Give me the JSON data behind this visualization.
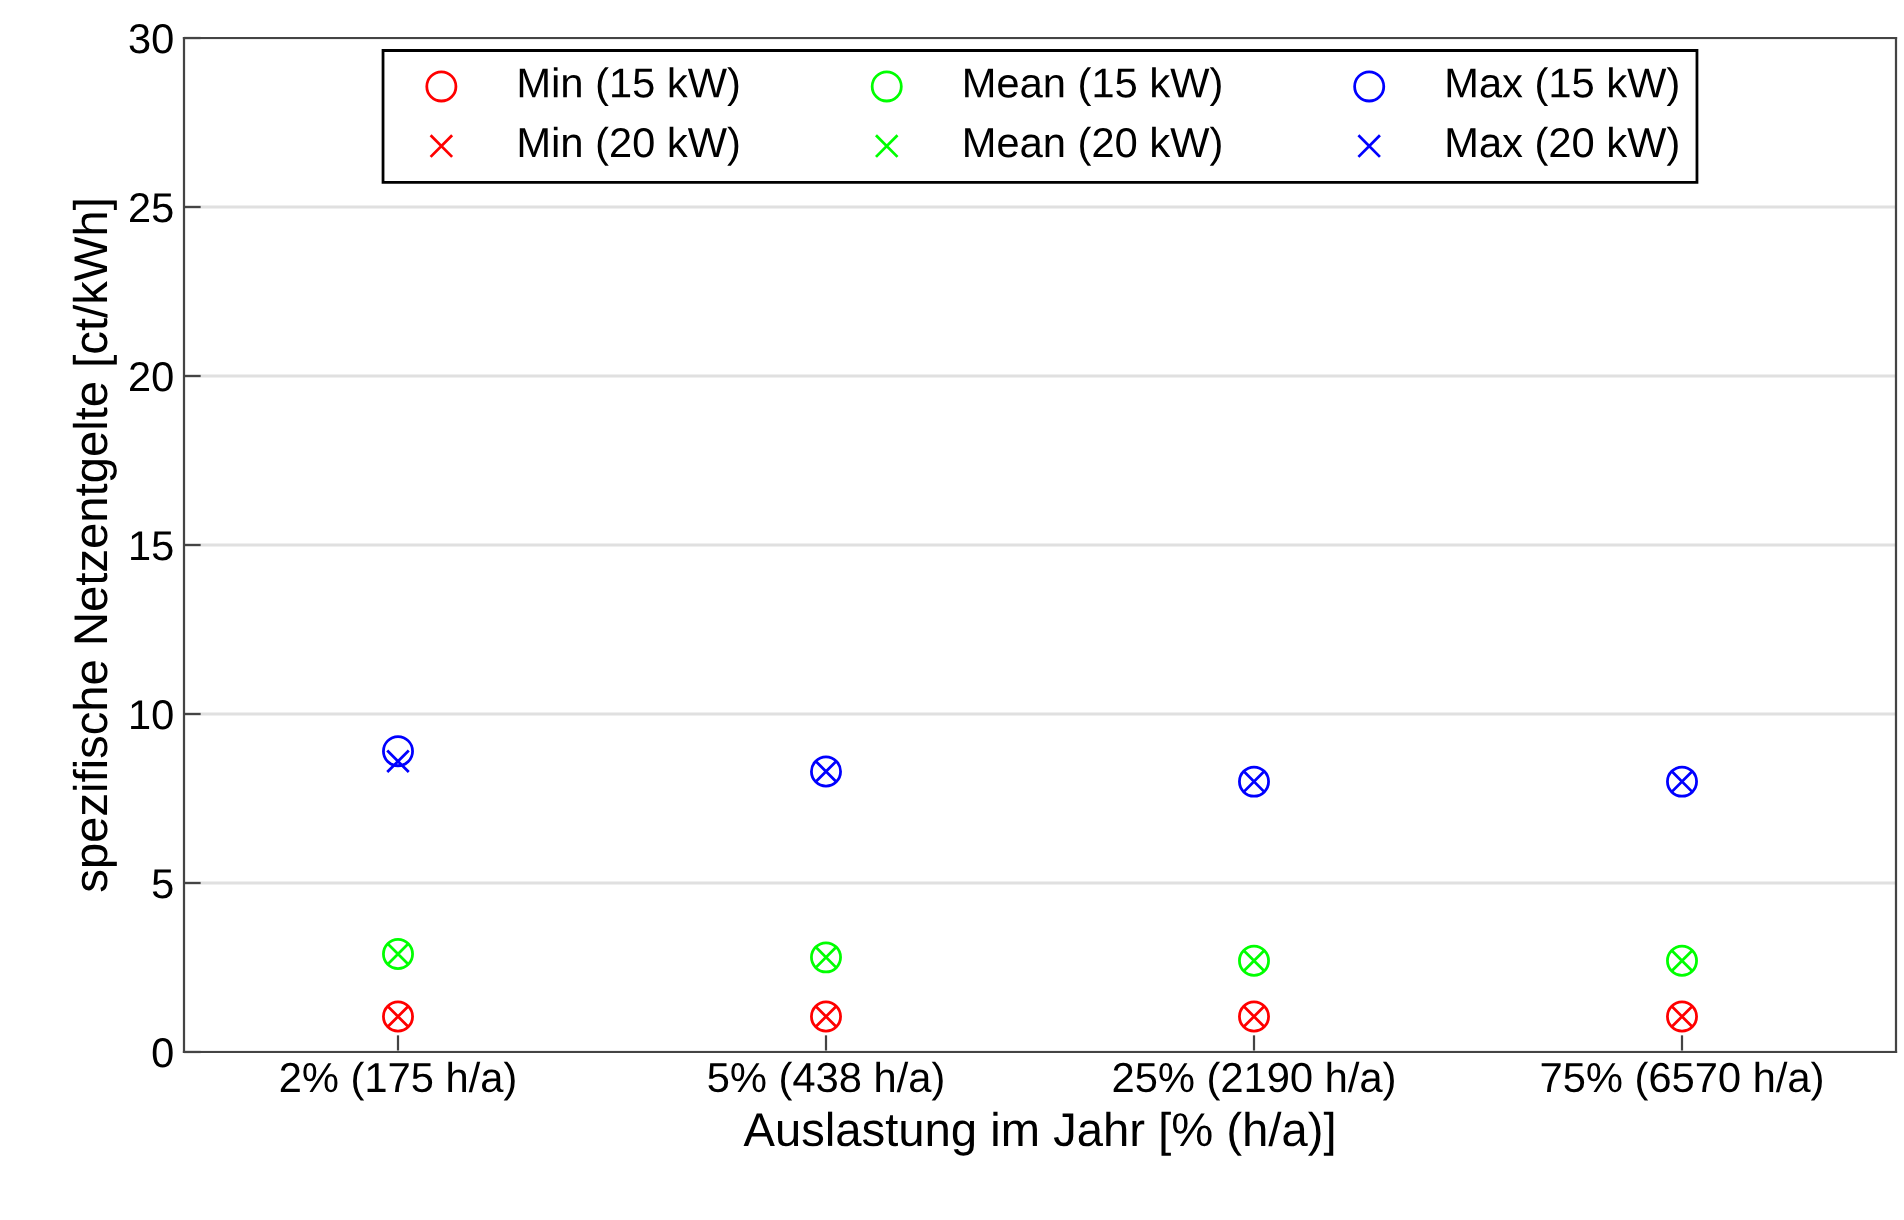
{
  "chart_data": {
    "type": "scatter",
    "xlabel": "Auslastung im Jahr [% (h/a)]",
    "ylabel": "spezifische Netzentgelte [ct/kWh]",
    "categories": [
      "2% (175 h/a)",
      "5% (438 h/a)",
      "25% (2190 h/a)",
      "75% (6570 h/a)"
    ],
    "series": [
      {
        "name": "Min (15 kW)",
        "color": "#ff0000",
        "marker": "circle",
        "values": [
          1.05,
          1.05,
          1.05,
          1.05
        ]
      },
      {
        "name": "Min (20 kW)",
        "color": "#ff0000",
        "marker": "cross",
        "values": [
          1.05,
          1.05,
          1.05,
          1.05
        ]
      },
      {
        "name": "Mean (15 kW)",
        "color": "#00ff00",
        "marker": "circle",
        "values": [
          2.9,
          2.8,
          2.7,
          2.7
        ]
      },
      {
        "name": "Mean (20 kW)",
        "color": "#00ff00",
        "marker": "cross",
        "values": [
          2.9,
          2.8,
          2.7,
          2.7
        ]
      },
      {
        "name": "Max (15 kW)",
        "color": "#0000ff",
        "marker": "circle",
        "values": [
          8.9,
          8.3,
          8.0,
          8.0
        ]
      },
      {
        "name": "Max (20 kW)",
        "color": "#0000ff",
        "marker": "cross",
        "values": [
          8.6,
          8.3,
          8.0,
          8.0
        ]
      }
    ],
    "ylim": [
      0,
      30
    ],
    "yticks": [
      0,
      5,
      10,
      15,
      20,
      25,
      30
    ],
    "grid": "y",
    "legend": "top"
  }
}
